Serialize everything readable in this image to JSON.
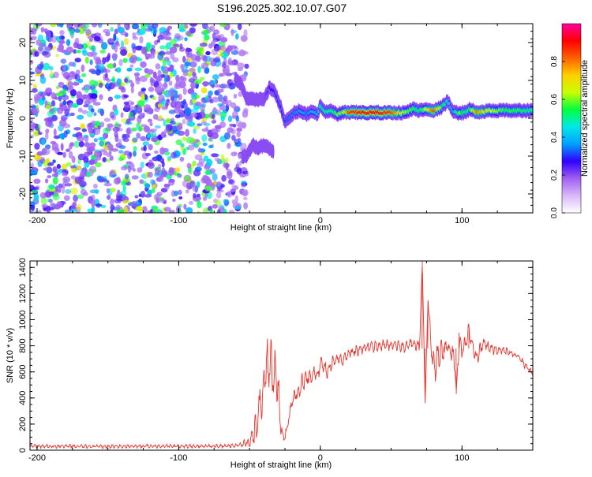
{
  "title": "S196.2025.302.10.07.G07",
  "colors": {
    "snr_line": "#e8342c",
    "axis": "#000000"
  },
  "chart_data": [
    {
      "type": "heatmap",
      "title": "S196.2025.302.10.07.G07",
      "xlabel": "Height of straight line (km)",
      "ylabel": "Frequency (Hz)",
      "xlim": [
        -205,
        150
      ],
      "ylim": [
        -25,
        25
      ],
      "xticks": [
        -200,
        -100,
        0,
        100
      ],
      "xticklabels": [
        "-200",
        "-100",
        "0",
        "100"
      ],
      "yticks": [
        -20,
        -10,
        0,
        10,
        20
      ],
      "yticklabels": [
        "-20",
        "-10",
        "0",
        "10",
        "20"
      ],
      "colorbar": {
        "label": "Normalized spectral amplitude",
        "range": [
          0.0,
          1.0
        ],
        "ticks": [
          0.0,
          0.2,
          0.4,
          0.6,
          0.8
        ],
        "ticklabels": [
          "0.0",
          "0.2",
          "0.4",
          "0.6",
          "0.8"
        ],
        "colormap": [
          "#ffffff",
          "#d8b8f8",
          "#a060f0",
          "#3000ff",
          "#00a0ff",
          "#00e8e8",
          "#00ff40",
          "#c8ff00",
          "#ffd000",
          "#ff6000",
          "#ff0000",
          "#ff00a0"
        ]
      },
      "noise_region": {
        "x": [
          -205,
          -60
        ],
        "amplitude": 0.15
      },
      "signal_ridge": {
        "x": [
          -60,
          -56,
          -52,
          -48,
          -44,
          -40,
          -36,
          -32,
          -28,
          -25,
          -22,
          -18,
          -14,
          -10,
          -6,
          -2,
          0,
          4,
          8,
          12,
          16,
          20,
          30,
          40,
          50,
          60,
          66,
          70,
          76,
          80,
          86,
          90,
          94,
          98,
          102,
          106,
          110,
          120,
          130,
          140,
          150
        ],
        "frequency": [
          10.5,
          9,
          5,
          5,
          5,
          5,
          8,
          7,
          3,
          -1,
          0,
          1.5,
          2,
          1,
          2,
          1,
          3.5,
          1.5,
          2,
          1,
          1.5,
          1.5,
          1.5,
          1.5,
          1.5,
          1.5,
          2.5,
          2,
          2.5,
          2,
          3,
          4.5,
          1.5,
          1.5,
          1.5,
          2.5,
          1.5,
          2,
          2,
          2,
          2
        ],
        "amplitude": [
          0.2,
          0.2,
          0.2,
          0.15,
          0.2,
          0.2,
          0.25,
          0.3,
          0.3,
          0.3,
          0.35,
          0.35,
          0.4,
          0.35,
          0.4,
          0.4,
          0.5,
          0.5,
          0.5,
          0.6,
          0.6,
          0.85,
          0.9,
          0.9,
          0.85,
          0.6,
          0.55,
          0.5,
          0.7,
          0.85,
          0.55,
          0.45,
          0.4,
          0.6,
          0.5,
          0.55,
          0.8,
          0.65,
          0.55,
          0.55,
          0.5
        ]
      },
      "mirror_branch": {
        "x": [
          -55,
          -52,
          -48,
          -44,
          -40,
          -36,
          -33
        ],
        "frequency": [
          -10,
          -10,
          -7,
          -8,
          -7,
          -8,
          -9
        ],
        "amplitude": [
          0.15,
          0.2,
          0.2,
          0.2,
          0.15,
          0.15,
          0.15
        ]
      }
    },
    {
      "type": "line",
      "xlabel": "Height of straight line (km)",
      "ylabel": "SNR (10 * v/v)",
      "xlim": [
        -205,
        150
      ],
      "ylim": [
        0,
        1450
      ],
      "xticks": [
        -200,
        -100,
        0,
        100
      ],
      "xticklabels": [
        "-200",
        "-100",
        "0",
        "100"
      ],
      "yticks": [
        0,
        200,
        400,
        600,
        800,
        1000,
        1200,
        1400
      ],
      "yticklabels": [
        "0",
        "200",
        "400",
        "600",
        "800",
        "1000",
        "1200",
        "1400"
      ],
      "series": [
        {
          "name": "SNR",
          "color": "#e8342c",
          "x": [
            -205,
            -180,
            -150,
            -120,
            -100,
            -80,
            -60,
            -50,
            -45,
            -42,
            -40,
            -38,
            -36,
            -34,
            -32,
            -30,
            -28,
            -26,
            -24,
            -22,
            -20,
            -18,
            -15,
            -12,
            -10,
            -8,
            -5,
            -2,
            0,
            5,
            10,
            15,
            20,
            25,
            30,
            40,
            50,
            60,
            65,
            70,
            72,
            74,
            76,
            78,
            80,
            85,
            90,
            95,
            96,
            98,
            100,
            105,
            110,
            115,
            120,
            130,
            140,
            150
          ],
          "y": [
            30,
            30,
            28,
            32,
            30,
            30,
            35,
            60,
            180,
            350,
            500,
            600,
            680,
            600,
            550,
            500,
            180,
            100,
            140,
            260,
            360,
            420,
            470,
            520,
            540,
            560,
            600,
            560,
            660,
            600,
            700,
            690,
            750,
            760,
            780,
            800,
            810,
            790,
            820,
            790,
            1450,
            350,
            1150,
            820,
            650,
            750,
            800,
            680,
            450,
            820,
            750,
            900,
            700,
            820,
            780,
            760,
            720,
            580
          ],
          "amplitude": [
            15,
            15,
            15,
            15,
            15,
            15,
            15,
            40,
            160,
            220,
            240,
            240,
            200,
            220,
            200,
            180,
            60,
            40,
            60,
            80,
            80,
            80,
            80,
            80,
            80,
            80,
            70,
            70,
            70,
            60,
            55,
            50,
            45,
            45,
            45,
            45,
            45,
            45,
            45,
            45,
            0,
            0,
            0,
            150,
            150,
            100,
            100,
            80,
            0,
            80,
            80,
            80,
            60,
            50,
            45,
            40,
            35,
            30
          ]
        }
      ]
    }
  ]
}
